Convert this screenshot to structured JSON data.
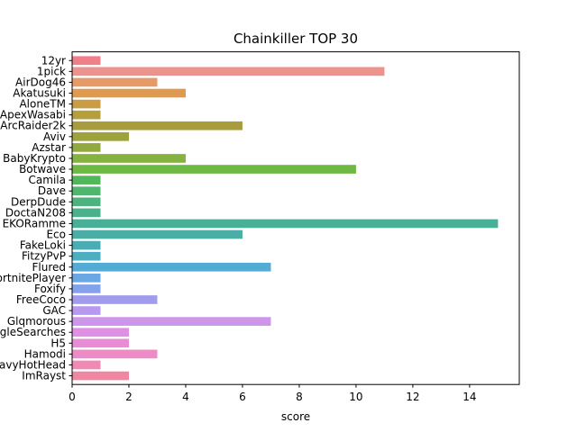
{
  "chart_data": {
    "type": "bar",
    "orientation": "horizontal",
    "title": "Chainkiller TOP 30",
    "xlabel": "score",
    "ylabel": "",
    "xlim": [
      0,
      15.75
    ],
    "xticks": [
      0,
      2,
      4,
      6,
      8,
      10,
      12,
      14
    ],
    "grid": false,
    "categories": [
      "12yr",
      "1pick",
      "AirDog46",
      "Akatusuki",
      "AloneTM",
      "ApexWasabi",
      "ArcRaider2k",
      "Aviv",
      "Azstar",
      "BabyKrypto",
      "Botwave",
      "Camila",
      "Dave",
      "DerpDude",
      "DoctaN208",
      "EKORamme",
      "Eco",
      "FakeLoki",
      "FitzyPvP",
      "Flured",
      "FortnitePlayer",
      "Foxify",
      "FreeCoco",
      "GAC",
      "Glqmorous",
      "GoogleSearches",
      "H5",
      "Hamodi",
      "HeavyHotHead",
      "ImRayst"
    ],
    "values": [
      1,
      11,
      3,
      4,
      1,
      1,
      6,
      2,
      1,
      4,
      10,
      1,
      1,
      1,
      1,
      15,
      6,
      1,
      1,
      7,
      1,
      1,
      3,
      1,
      7,
      2,
      2,
      3,
      1,
      2
    ],
    "colors": [
      "#f07f8a",
      "#ed928c",
      "#e69a68",
      "#df9a4e",
      "#c99c45",
      "#b59e3c",
      "#a99c3c",
      "#9ca33c",
      "#91a93e",
      "#86b23f",
      "#6eb844",
      "#52b75a",
      "#4fb56f",
      "#4db37e",
      "#4bb08b",
      "#49b098",
      "#4aaea7",
      "#4badb4",
      "#4daec2",
      "#52acd3",
      "#6aa7e3",
      "#83a2eb",
      "#a19cee",
      "#b79aef",
      "#cd96eb",
      "#df90e4",
      "#e88cd6",
      "#ee8ac5",
      "#f089b4",
      "#f087a2"
    ]
  }
}
